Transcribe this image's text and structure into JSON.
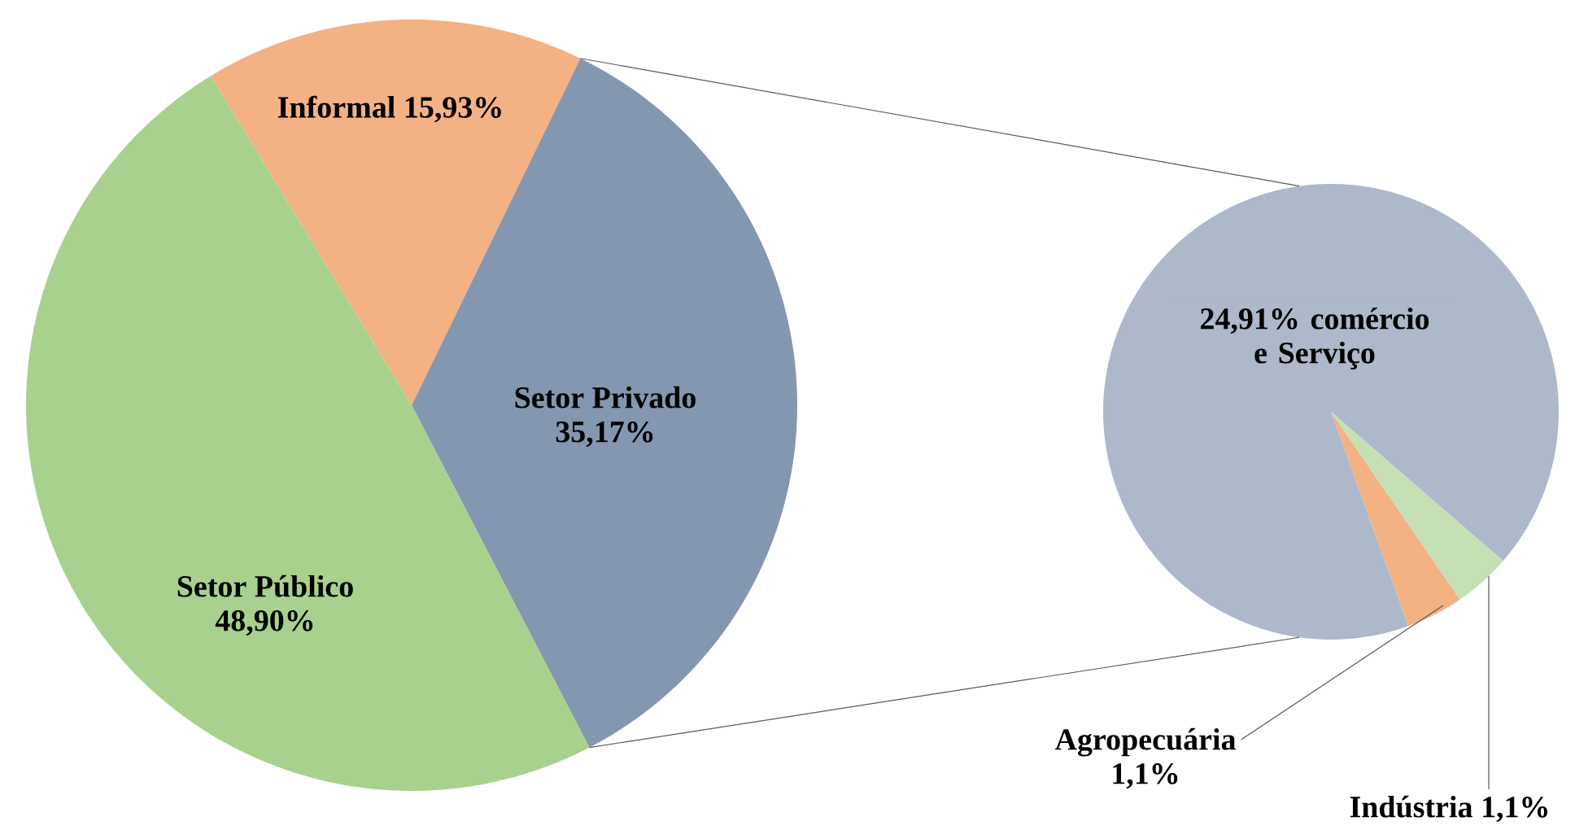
{
  "chart_data": [
    {
      "type": "pie",
      "categories": [
        "Informal",
        "Setor Privado",
        "Setor Público"
      ],
      "values": [
        15.93,
        35.17,
        48.9
      ],
      "value_labels": [
        "15,93%",
        "35,17%",
        "48,90%"
      ],
      "colors": [
        "#f4b183",
        "#8497b0",
        "#a9d18e"
      ]
    },
    {
      "type": "pie",
      "categories": [
        "comércio e Serviço",
        "Agropecuária",
        "Indústria"
      ],
      "values": [
        24.91,
        1.1,
        1.1
      ],
      "value_labels": [
        "24,91%",
        "1,1%",
        "1,1%"
      ],
      "colors": [
        "#adb9ca",
        "#f4b183",
        "#c5e0b4"
      ]
    }
  ]
}
